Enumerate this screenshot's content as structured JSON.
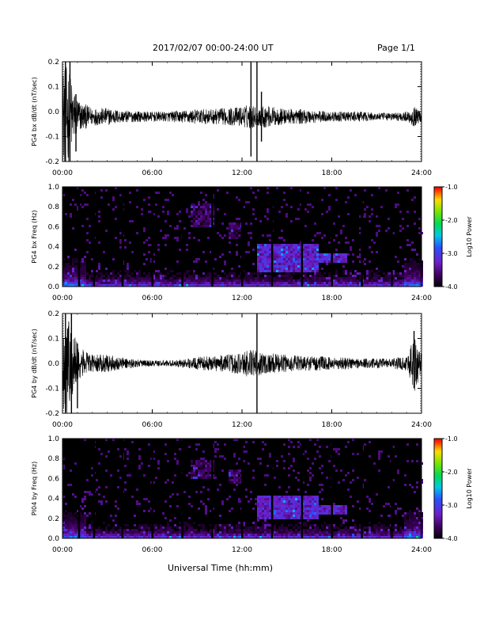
{
  "header": {
    "title": "2017/02/07   00:00-24:00 UT",
    "page": "Page 1/1"
  },
  "xlabel": "Universal Time (hh:mm)",
  "colors": {
    "background": "#ffffff",
    "axes": "#000000",
    "spectrogram_background": "#000000"
  },
  "chart_data": [
    {
      "type": "line",
      "ylabel": "PG4 bx dB/dt (nT/sec)",
      "xlim": [
        0,
        24
      ],
      "ylim": [
        -0.2,
        0.2
      ],
      "yticks": [
        -0.2,
        -0.1,
        0.0,
        0.1,
        0.2
      ],
      "ytick_labels": [
        "-0.2",
        "-0.1",
        "0.0",
        "0.1",
        "0.2"
      ],
      "xticks": [
        0,
        6,
        12,
        18,
        24
      ],
      "xtick_labels": [
        "00:00",
        "06:00",
        "12:00",
        "18:00",
        "24:00"
      ],
      "envelope": {
        "t": [
          0,
          0.4,
          0.8,
          1.2,
          2,
          3,
          4,
          5,
          6,
          7,
          8,
          9,
          10,
          11,
          12,
          12.5,
          13,
          13.5,
          14,
          15,
          16,
          17,
          18,
          19,
          20,
          21,
          22,
          23,
          23.5,
          24
        ],
        "amp": [
          0.2,
          0.2,
          0.1,
          0.06,
          0.035,
          0.035,
          0.025,
          0.022,
          0.02,
          0.02,
          0.025,
          0.03,
          0.03,
          0.035,
          0.04,
          0.05,
          0.04,
          0.045,
          0.04,
          0.03,
          0.03,
          0.025,
          0.02,
          0.02,
          0.02,
          0.015,
          0.015,
          0.02,
          0.04,
          0.02
        ]
      },
      "spikes": [
        {
          "t": 0.2,
          "lo": -0.2,
          "hi": 0.2
        },
        {
          "t": 0.5,
          "lo": -0.2,
          "hi": 0.2
        },
        {
          "t": 0.9,
          "lo": -0.16,
          "hi": 0.07
        },
        {
          "t": 12.6,
          "lo": -0.18,
          "hi": 0.2
        },
        {
          "t": 13.0,
          "lo": -0.2,
          "hi": 0.2
        },
        {
          "t": 13.3,
          "lo": -0.12,
          "hi": 0.08
        }
      ]
    },
    {
      "type": "heatmap",
      "ylabel": "PG4 bx Freq (Hz)",
      "xlim": [
        0,
        24
      ],
      "ylim": [
        0,
        1.0
      ],
      "yticks": [
        0.0,
        0.2,
        0.4,
        0.6,
        0.8,
        1.0
      ],
      "ytick_labels": [
        "0.0",
        "0.2",
        "0.4",
        "0.6",
        "0.8",
        "1.0"
      ],
      "xticks": [
        0,
        6,
        12,
        18,
        24
      ],
      "xtick_labels": [
        "00:00",
        "06:00",
        "12:00",
        "18:00",
        "24:00"
      ],
      "colorbar": {
        "label": "Log10 Power",
        "range": [
          -4.0,
          -1.0
        ],
        "ticks": [
          -1.0,
          -2.0,
          -3.0,
          -4.0
        ],
        "tick_labels": [
          "-1.0",
          "-2.0",
          "-3.0",
          "-4.0"
        ]
      },
      "gaps_hours": [
        1.1,
        2.1,
        4.0,
        6.0,
        8.0,
        10.0,
        12.0,
        14.0,
        16.0,
        18.0,
        20.0,
        22.0
      ],
      "features": [
        {
          "t0": 13.0,
          "t1": 17.0,
          "f0": 0.15,
          "f1": 0.45,
          "level": -3.0
        },
        {
          "t0": 16.5,
          "t1": 19.0,
          "f0": 0.25,
          "f1": 0.35,
          "level": -3.0
        },
        {
          "t0": 8.5,
          "t1": 10.0,
          "f0": 0.6,
          "f1": 0.85,
          "level": -3.4
        },
        {
          "t0": 11.0,
          "t1": 12.0,
          "f0": 0.5,
          "f1": 0.65,
          "level": -3.4
        }
      ]
    },
    {
      "type": "line",
      "ylabel": "PG4 by dB/dt (nT/sec)",
      "xlim": [
        0,
        24
      ],
      "ylim": [
        -0.2,
        0.2
      ],
      "yticks": [
        -0.2,
        -0.1,
        0.0,
        0.1,
        0.2
      ],
      "ytick_labels": [
        "-0.2",
        "-0.1",
        "0.0",
        "0.1",
        "0.2"
      ],
      "xticks": [
        0,
        6,
        12,
        18,
        24
      ],
      "xtick_labels": [
        "00:00",
        "06:00",
        "12:00",
        "18:00",
        "24:00"
      ],
      "envelope": {
        "t": [
          0,
          0.4,
          0.8,
          1.2,
          2,
          3,
          4,
          5,
          6,
          7,
          8,
          9,
          10,
          11,
          12,
          12.5,
          13,
          13.5,
          14,
          15,
          16,
          17,
          18,
          19,
          20,
          21,
          22,
          23,
          23.5,
          24
        ],
        "amp": [
          0.2,
          0.2,
          0.12,
          0.06,
          0.035,
          0.035,
          0.025,
          0.015,
          0.012,
          0.012,
          0.015,
          0.025,
          0.03,
          0.035,
          0.045,
          0.06,
          0.05,
          0.045,
          0.04,
          0.035,
          0.03,
          0.03,
          0.025,
          0.025,
          0.02,
          0.02,
          0.02,
          0.03,
          0.12,
          0.04
        ]
      },
      "spikes": [
        {
          "t": 0.2,
          "lo": -0.2,
          "hi": 0.2
        },
        {
          "t": 0.6,
          "lo": -0.2,
          "hi": 0.2
        },
        {
          "t": 1.0,
          "lo": -0.18,
          "hi": 0.08
        },
        {
          "t": 13.0,
          "lo": -0.2,
          "hi": 0.2
        },
        {
          "t": 23.5,
          "lo": -0.1,
          "hi": 0.13
        }
      ]
    },
    {
      "type": "heatmap",
      "ylabel": "PI04 by Freq (Hz)",
      "xlim": [
        0,
        24
      ],
      "ylim": [
        0,
        1.0
      ],
      "yticks": [
        0.0,
        0.2,
        0.4,
        0.6,
        0.8,
        1.0
      ],
      "ytick_labels": [
        "0.0",
        "0.2",
        "0.4",
        "0.6",
        "0.8",
        "1.0"
      ],
      "xticks": [
        0,
        6,
        12,
        18,
        24
      ],
      "xtick_labels": [
        "00:00",
        "06:00",
        "12:00",
        "18:00",
        "24:00"
      ],
      "colorbar": {
        "label": "Log10 Power",
        "range": [
          -4.0,
          -1.0
        ],
        "ticks": [
          -1.0,
          -2.0,
          -3.0,
          -4.0
        ],
        "tick_labels": [
          "-1.0",
          "-2.0",
          "-3.0",
          "-4.0"
        ]
      },
      "gaps_hours": [
        1.1,
        2.1,
        4.0,
        6.0,
        8.0,
        10.0,
        12.0,
        14.0,
        16.0,
        18.0,
        20.0,
        22.0
      ],
      "features": [
        {
          "t0": 13.0,
          "t1": 17.0,
          "f0": 0.2,
          "f1": 0.45,
          "level": -3.0
        },
        {
          "t0": 16.5,
          "t1": 19.0,
          "f0": 0.25,
          "f1": 0.35,
          "level": -3.0
        },
        {
          "t0": 8.5,
          "t1": 10.0,
          "f0": 0.6,
          "f1": 0.8,
          "level": -3.4
        },
        {
          "t0": 11.0,
          "t1": 12.0,
          "f0": 0.55,
          "f1": 0.7,
          "level": -3.4
        }
      ]
    }
  ]
}
